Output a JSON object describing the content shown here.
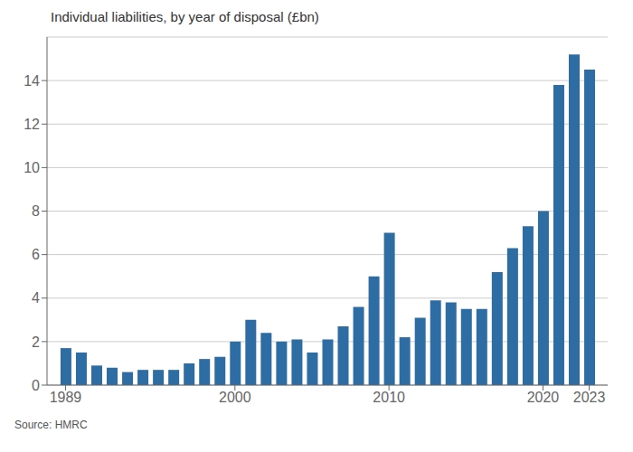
{
  "chart_data": {
    "type": "bar",
    "title": "Individual liabilities, by year of disposal (£bn)",
    "annotations": [
      "Source: HMRC"
    ],
    "x": [
      1989,
      1990,
      1991,
      1992,
      1993,
      1994,
      1995,
      1996,
      1997,
      1998,
      1999,
      2000,
      2001,
      2002,
      2003,
      2004,
      2005,
      2006,
      2007,
      2008,
      2009,
      2010,
      2011,
      2012,
      2013,
      2014,
      2015,
      2016,
      2017,
      2018,
      2019,
      2020,
      2021,
      2022,
      2023
    ],
    "values": [
      1.7,
      1.5,
      0.9,
      0.8,
      0.6,
      0.7,
      0.7,
      0.7,
      1.0,
      1.2,
      1.3,
      2.0,
      3.0,
      2.4,
      2.0,
      2.1,
      1.5,
      2.1,
      2.7,
      3.6,
      5.0,
      7.0,
      2.2,
      3.1,
      3.9,
      3.8,
      3.5,
      3.5,
      5.2,
      6.3,
      7.3,
      8.0,
      13.8,
      15.2,
      14.5
    ],
    "color": "#2e6da4",
    "xlim": [
      1987.8,
      2024.2
    ],
    "xticks": [
      1989,
      2000,
      2010,
      2020,
      2023
    ],
    "ylim": [
      0,
      16.0
    ],
    "yticks": [
      0,
      2,
      4,
      6,
      8,
      10,
      12,
      14
    ],
    "grid": true
  }
}
